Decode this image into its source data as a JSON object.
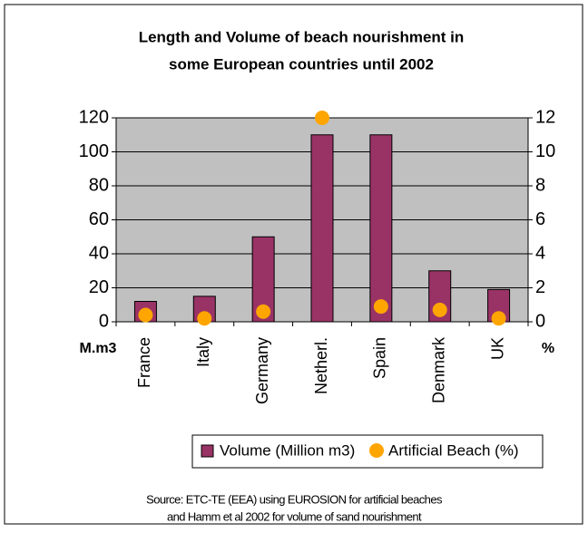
{
  "chart_data": {
    "type": "bar",
    "title": [
      "Length and Volume of beach nourishment in",
      "some European countries until 2002"
    ],
    "y_label": "M.m3",
    "y2_label": "%",
    "categories": [
      "France",
      "Italy",
      "Germany",
      "Netherl.",
      "Spain",
      "Denmark",
      "UK"
    ],
    "series": [
      {
        "name": "Volume (Million m3)",
        "type": "bar",
        "color": "#993366",
        "values": [
          12,
          15,
          50,
          110,
          110,
          30,
          19
        ]
      },
      {
        "name": "Artificial Beach (%)",
        "type": "scatter",
        "axis": "y2",
        "color": "#ffa500",
        "values": [
          0.4,
          0.2,
          0.6,
          12,
          0.9,
          0.7,
          0.2
        ]
      }
    ],
    "ylim": [
      0,
      120
    ],
    "yticks": [
      0,
      20,
      40,
      60,
      80,
      100,
      120
    ],
    "y2lim": [
      0,
      12
    ],
    "y2ticks": [
      0,
      2,
      4,
      6,
      8,
      10,
      12
    ],
    "grid": true,
    "legend": "bottom",
    "source": [
      "Source: ETC-TE (EEA) using EUROSION for artificial beaches",
      "and Hamm et al 2002 for volume of sand nourishment"
    ]
  }
}
